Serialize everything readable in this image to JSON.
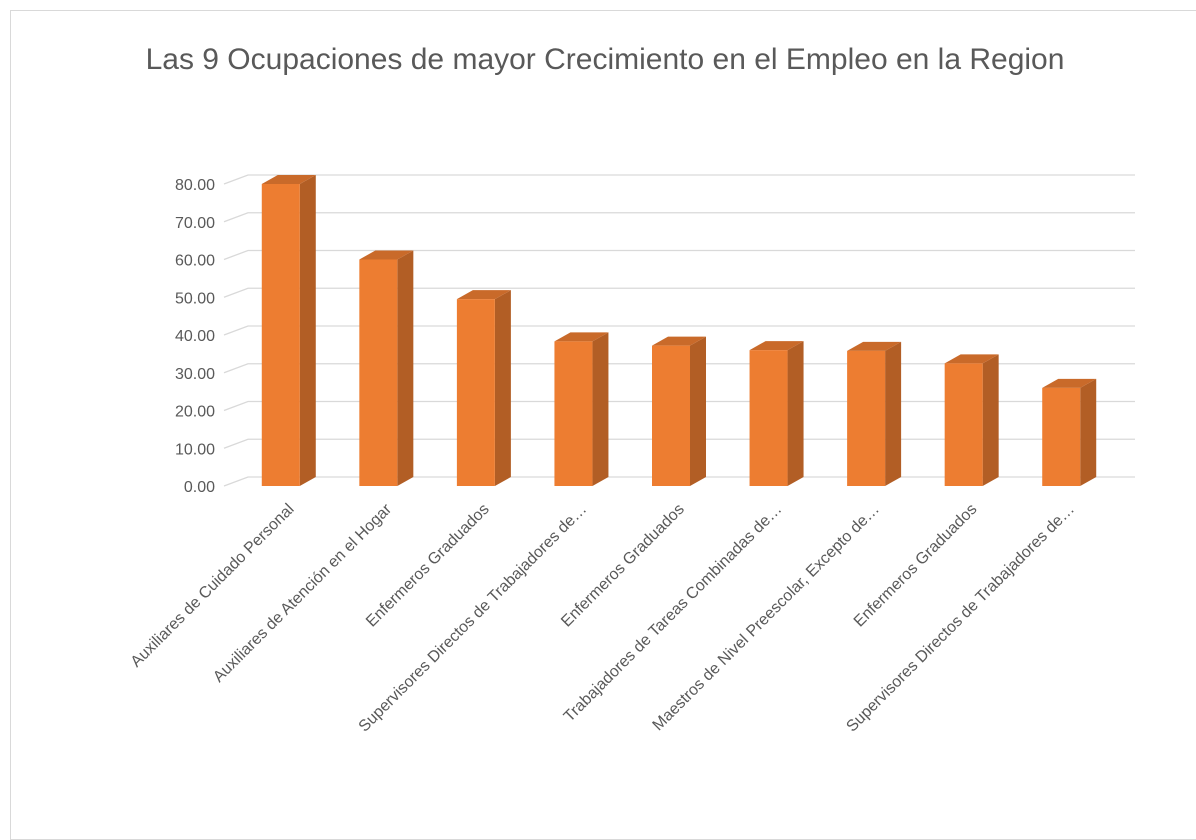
{
  "chart_data": {
    "type": "bar3d",
    "title": "Las 9 Ocupaciones de mayor Crecimiento en el Empleo en la Region",
    "categories": [
      "Auxiliares de Cuidado Personal",
      "Auxiliares de Atención en el Hogar",
      "Enfermeros Graduados",
      "Supervisores Directos de Trabajadores de…",
      "Enfermeros Graduados",
      "Trabajadores de Tareas Combinadas de…",
      "Maestros de Nivel Preescolar, Excepto de…",
      "Enfermeros Graduados",
      "Supervisores Directos de Trabajadores de…"
    ],
    "values": [
      80,
      60,
      49.5,
      38.3,
      37.2,
      36,
      35.8,
      32.5,
      26
    ],
    "color": "#ed7d31",
    "ylim": [
      0,
      80
    ],
    "yticks": [
      {
        "value": 0,
        "label": "0.00"
      },
      {
        "value": 10,
        "label": "10.00"
      },
      {
        "value": 20,
        "label": "20.00"
      },
      {
        "value": 30,
        "label": "30.00"
      },
      {
        "value": 40,
        "label": "40.00"
      },
      {
        "value": 50,
        "label": "50.00"
      },
      {
        "value": 60,
        "label": "60.00"
      },
      {
        "value": 70,
        "label": "70.00"
      },
      {
        "value": 80,
        "label": "80.00"
      }
    ],
    "grid": true
  }
}
